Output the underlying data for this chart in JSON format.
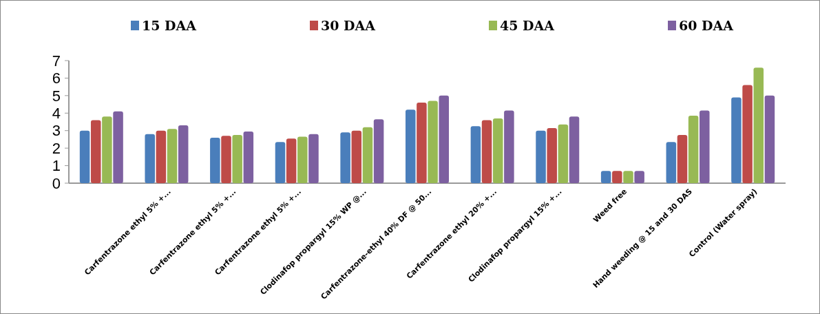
{
  "chart_data": {
    "type": "bar",
    "categories": [
      null,
      "Carfentrazone ethyl 5% +...",
      "Carfentrazone ethyl 5% +...",
      "Carfentrazone ethyl 5% +...",
      "Clodinafop propargyl 15% WP @...",
      "Carfentrazone-ethyl 40% DF @ 50...",
      "Carfentrazone ethyl 20% +...",
      "Clodinafop propargyl 15% +...",
      "Weed free",
      "Hand weeding @ 15 and 30 DAS",
      "Control (Water spray)"
    ],
    "series": [
      {
        "name": "15 DAA",
        "color": "#4a7ebb",
        "values": [
          3.0,
          2.8,
          2.6,
          2.35,
          2.9,
          4.2,
          3.25,
          3.0,
          0.7,
          2.35,
          4.9
        ]
      },
      {
        "name": "30 DAA",
        "color": "#be4b48",
        "values": [
          3.6,
          3.0,
          2.7,
          2.55,
          3.0,
          4.6,
          3.6,
          3.15,
          0.7,
          2.75,
          5.6
        ]
      },
      {
        "name": "45 DAA",
        "color": "#98b954",
        "values": [
          3.8,
          3.1,
          2.75,
          2.65,
          3.2,
          4.7,
          3.7,
          3.35,
          0.7,
          3.85,
          6.6
        ]
      },
      {
        "name": "60 DAA",
        "color": "#7d60a0",
        "values": [
          4.1,
          3.3,
          2.95,
          2.8,
          3.65,
          5.0,
          4.15,
          3.8,
          0.7,
          4.15,
          5.0
        ]
      }
    ],
    "ylim": [
      0,
      7
    ],
    "yticks": [
      0,
      1,
      2,
      3,
      4,
      5,
      6,
      7
    ],
    "grid": false,
    "legend": "top"
  }
}
